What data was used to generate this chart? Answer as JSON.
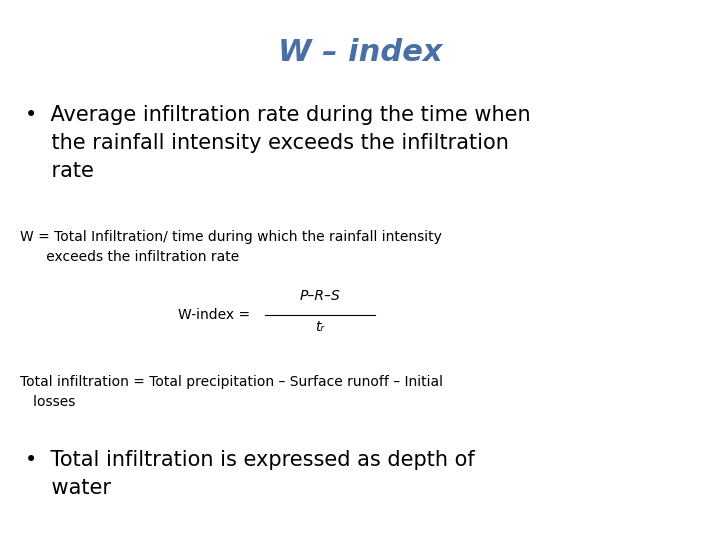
{
  "title": "W – index",
  "title_color": "#4a6fa5",
  "title_fontsize": 22,
  "background_color": "#ffffff",
  "bullet1_line1": "•  Average infiltration rate during the time when",
  "bullet1_line2": "    the rainfall intensity exceeds the infiltration",
  "bullet1_line3": "    rate",
  "w_def_line1": "W = Total Infiltration/ time during which the rainfall intensity",
  "w_def_line2": "      exceeds the infiltration rate",
  "formula_label": "W-index = ",
  "formula_numerator": "P–R–S",
  "formula_denominator": "tᵣ",
  "total_inf_line1": "Total infiltration = Total precipitation – Surface runoff – Initial",
  "total_inf_line2": "   losses",
  "bullet2_line1": "•  Total infiltration is expressed as depth of",
  "bullet2_line2": "    water",
  "body_fontsize": 13,
  "small_fontsize": 10,
  "large_fontsize": 15,
  "formula_fontsize": 10
}
